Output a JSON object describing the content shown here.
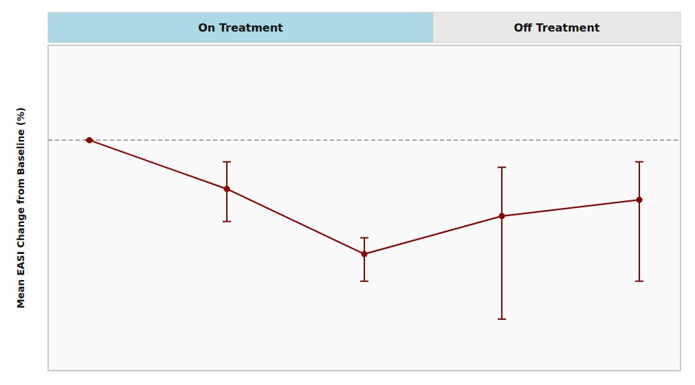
{
  "chart_data": {
    "type": "line",
    "y_label": "Mean EASI Change from Baseline (%)",
    "x": [
      0,
      1,
      2,
      3,
      4
    ],
    "values": [
      0,
      -18,
      -42,
      -28,
      -22
    ],
    "error_lower": [
      0,
      12,
      10,
      38,
      30
    ],
    "error_upper": [
      0,
      10,
      6,
      18,
      14
    ],
    "color": "#8B0000",
    "marker": "circle",
    "reference_line": 0,
    "xlim": [
      -0.3,
      4.3
    ],
    "ylim": [
      -85,
      35
    ],
    "tick_labels": false,
    "grid": false,
    "regions": [
      {
        "label": "On Treatment",
        "from": -0.3,
        "to": 2.5,
        "color": "#ADD8E6"
      },
      {
        "label": "Off Treatment",
        "from": 2.5,
        "to": 4.3,
        "color": "#E8E8E8"
      }
    ]
  }
}
